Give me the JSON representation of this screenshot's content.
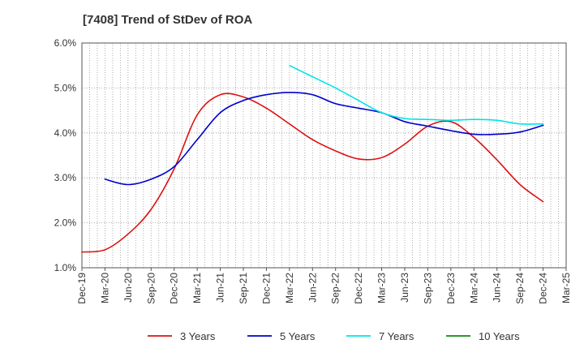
{
  "chart_data": {
    "type": "line",
    "title": "[7408]  Trend of StDev of ROA",
    "xlabel": "",
    "ylabel": "",
    "grid": true,
    "legend_position": "bottom",
    "x_ticks": [
      "Dec-19",
      "Mar-20",
      "Jun-20",
      "Sep-20",
      "Dec-20",
      "Mar-21",
      "Jun-21",
      "Sep-21",
      "Dec-21",
      "Mar-22",
      "Jun-22",
      "Sep-22",
      "Dec-22",
      "Mar-23",
      "Jun-23",
      "Sep-23",
      "Dec-23",
      "Mar-24",
      "Jun-24",
      "Sep-24",
      "Dec-24",
      "Mar-25"
    ],
    "y_ticks": [
      "1.0%",
      "2.0%",
      "3.0%",
      "4.0%",
      "5.0%",
      "6.0%"
    ],
    "ylim": [
      1.0,
      6.0
    ],
    "series": [
      {
        "name": "3 Years",
        "color": "#dd1111",
        "values": [
          1.35,
          1.4,
          1.75,
          2.3,
          3.2,
          4.4,
          4.85,
          4.8,
          4.55,
          4.2,
          3.85,
          3.6,
          3.42,
          3.45,
          3.75,
          4.15,
          4.25,
          3.9,
          3.4,
          2.85,
          2.47
        ]
      },
      {
        "name": "5 Years",
        "color": "#0000cc",
        "values": [
          null,
          2.97,
          2.85,
          2.97,
          3.25,
          3.85,
          4.45,
          4.72,
          4.85,
          4.9,
          4.85,
          4.65,
          4.55,
          4.45,
          4.25,
          4.15,
          4.05,
          3.97,
          3.97,
          4.02,
          4.17
        ]
      },
      {
        "name": "7 Years",
        "color": "#00e5e5",
        "values": [
          null,
          null,
          null,
          null,
          null,
          null,
          null,
          null,
          null,
          5.5,
          5.25,
          5.0,
          4.72,
          4.45,
          4.32,
          4.3,
          4.28,
          4.3,
          4.28,
          4.2,
          4.2
        ]
      },
      {
        "name": "10 Years",
        "color": "#118811",
        "values": [
          null,
          null,
          null,
          null,
          null,
          null,
          null,
          null,
          null,
          null,
          null,
          null,
          null,
          null,
          null,
          null,
          null,
          null,
          null,
          null,
          null
        ]
      }
    ]
  }
}
